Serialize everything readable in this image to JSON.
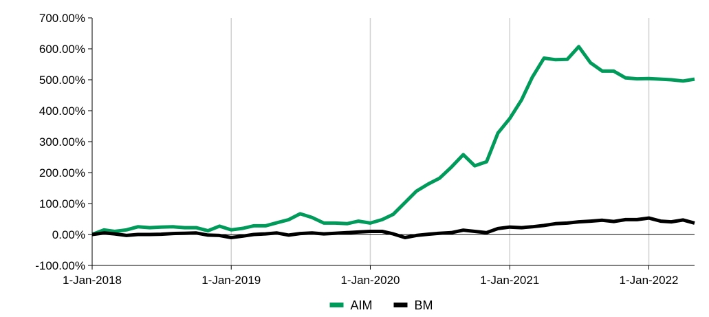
{
  "chart_data": {
    "type": "line",
    "x_axis": {
      "type": "date",
      "range": [
        "2018-01-01",
        "2022-05-01"
      ],
      "ticks": [
        {
          "date": "2018-01-01",
          "label": "1-Jan-2018"
        },
        {
          "date": "2019-01-01",
          "label": "1-Jan-2019"
        },
        {
          "date": "2020-01-01",
          "label": "1-Jan-2020"
        },
        {
          "date": "2021-01-01",
          "label": "1-Jan-2021"
        },
        {
          "date": "2022-01-01",
          "label": "1-Jan-2022"
        }
      ]
    },
    "y_axis": {
      "unit": "percent",
      "range": [
        -100,
        700
      ],
      "ticks": [
        {
          "value": 700,
          "label": "700.00%"
        },
        {
          "value": 600,
          "label": "600.00%"
        },
        {
          "value": 500,
          "label": "500.00%"
        },
        {
          "value": 400,
          "label": "400.00%"
        },
        {
          "value": 300,
          "label": "300.00%"
        },
        {
          "value": 200,
          "label": "200.00%"
        },
        {
          "value": 100,
          "label": "100.00%"
        },
        {
          "value": 0,
          "label": "0.00%"
        },
        {
          "value": -100,
          "label": "-100.00%"
        }
      ]
    },
    "grid": {
      "vertical": true,
      "horizontal": false
    },
    "legend": {
      "position": "bottom"
    },
    "x": [
      "2018-01-01",
      "2018-02-01",
      "2018-03-01",
      "2018-04-01",
      "2018-05-01",
      "2018-06-01",
      "2018-07-01",
      "2018-08-01",
      "2018-09-01",
      "2018-10-01",
      "2018-11-01",
      "2018-12-01",
      "2019-01-01",
      "2019-02-01",
      "2019-03-01",
      "2019-04-01",
      "2019-05-01",
      "2019-06-01",
      "2019-07-01",
      "2019-08-01",
      "2019-09-01",
      "2019-10-01",
      "2019-11-01",
      "2019-12-01",
      "2020-01-01",
      "2020-02-01",
      "2020-03-01",
      "2020-04-01",
      "2020-05-01",
      "2020-06-01",
      "2020-07-01",
      "2020-08-01",
      "2020-09-01",
      "2020-10-01",
      "2020-11-01",
      "2020-12-01",
      "2021-01-01",
      "2021-02-01",
      "2021-03-01",
      "2021-04-01",
      "2021-05-01",
      "2021-06-01",
      "2021-07-01",
      "2021-08-01",
      "2021-09-01",
      "2021-10-01",
      "2021-11-01",
      "2021-12-01",
      "2022-01-01",
      "2022-02-01",
      "2022-03-01",
      "2022-04-01",
      "2022-05-01"
    ],
    "series": [
      {
        "name": "AIM",
        "color": "#009a5a",
        "values": [
          0,
          15,
          10,
          15,
          25,
          22,
          24,
          25,
          22,
          22,
          12,
          27,
          15,
          20,
          28,
          28,
          38,
          48,
          67,
          55,
          37,
          37,
          35,
          43,
          37,
          48,
          65,
          103,
          140,
          163,
          182,
          218,
          258,
          222,
          235,
          328,
          375,
          435,
          508,
          570,
          565,
          566,
          607,
          555,
          528,
          528,
          506,
          503,
          504,
          502,
          500,
          496,
          502
        ]
      },
      {
        "name": "BM",
        "color": "#000000",
        "values": [
          0,
          5,
          2,
          -3,
          0,
          0,
          1,
          3,
          4,
          5,
          -2,
          -3,
          -10,
          -5,
          0,
          2,
          5,
          -2,
          3,
          5,
          2,
          4,
          6,
          8,
          10,
          10,
          2,
          -10,
          -3,
          1,
          4,
          6,
          14,
          10,
          6,
          19,
          24,
          22,
          25,
          29,
          35,
          37,
          41,
          43,
          46,
          42,
          48,
          48,
          53,
          43,
          41,
          47,
          37
        ]
      }
    ]
  }
}
